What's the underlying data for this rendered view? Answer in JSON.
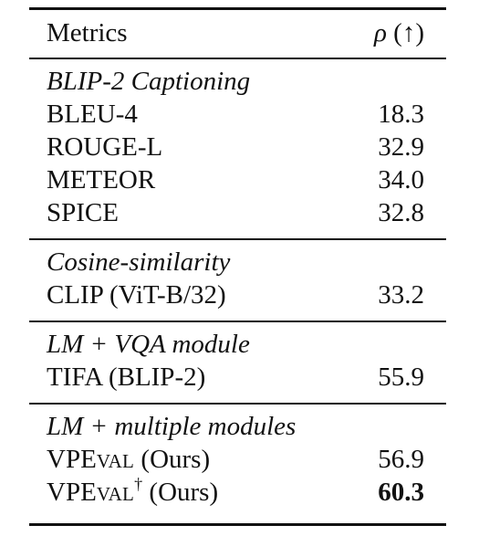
{
  "header": {
    "metrics_label": "Metrics",
    "rho_symbol": "ρ",
    "rho_arrow": "(↑)"
  },
  "groups": [
    {
      "title": "BLIP-2 Captioning",
      "rows": [
        {
          "metric": "BLEU-4",
          "value": "18.3"
        },
        {
          "metric": "ROUGE-L",
          "value": "32.9"
        },
        {
          "metric": "METEOR",
          "value": "34.0"
        },
        {
          "metric": "SPICE",
          "value": "32.8"
        }
      ]
    },
    {
      "title": "Cosine-similarity",
      "rows": [
        {
          "metric": "CLIP (ViT-B/32)",
          "value": "33.2"
        }
      ]
    },
    {
      "title": "LM + VQA module",
      "rows": [
        {
          "metric": "TIFA (BLIP-2)",
          "value": "55.9"
        }
      ]
    },
    {
      "title": "LM + multiple modules",
      "rows": [
        {
          "metric_v": "V",
          "metric_p": "P",
          "metric_e": "E",
          "metric_small": "VAL",
          "metric_suffix": " (Ours)",
          "value": "56.9"
        },
        {
          "metric_v": "V",
          "metric_p": "P",
          "metric_e": "E",
          "metric_small": "VAL",
          "metric_dagger": "†",
          "metric_suffix": " (Ours)",
          "value": "60.3"
        }
      ]
    }
  ]
}
